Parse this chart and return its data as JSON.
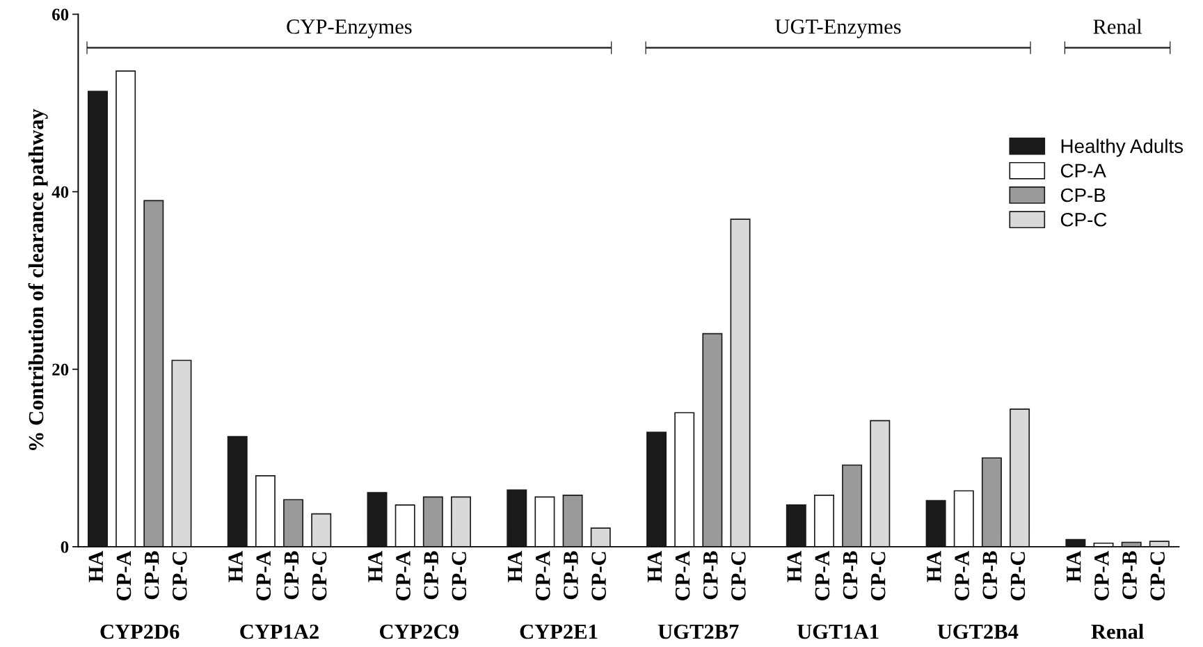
{
  "chart_data": {
    "type": "bar",
    "ylabel": "% Contribution of clearance pathway",
    "categories": [
      "HA",
      "CP-A",
      "CP-B",
      "CP-C",
      null,
      "HA",
      "CP-A",
      "CP-B",
      "CP-C",
      null,
      "HA",
      "CP-A",
      "CP-B",
      "CP-C",
      null,
      "HA",
      "CP-A",
      "CP-B",
      "CP-C",
      null,
      "HA",
      "CP-A",
      "CP-B",
      "CP-C",
      null,
      "HA",
      "CP-A",
      "CP-B",
      "CP-C",
      null,
      "HA",
      "CP-A",
      "CP-B",
      "CP-C",
      null,
      "HA",
      "CP-A",
      "CP-B",
      "CP-C"
    ],
    "series": [
      {
        "name": "Healthy Adults",
        "color": "#1a1a1a",
        "values": [
          51.3,
          null,
          null,
          null,
          null,
          12.4,
          null,
          null,
          null,
          null,
          6.1,
          null,
          null,
          null,
          null,
          6.4,
          null,
          null,
          null,
          null,
          12.9,
          null,
          null,
          null,
          null,
          4.7,
          null,
          null,
          null,
          null,
          5.2,
          null,
          null,
          null,
          null,
          0.8,
          null,
          null,
          null
        ]
      },
      {
        "name": "CP-A",
        "color": "#ffffff",
        "values": [
          null,
          53.6,
          null,
          null,
          null,
          null,
          8.0,
          null,
          null,
          null,
          null,
          4.7,
          null,
          null,
          null,
          null,
          5.6,
          null,
          null,
          null,
          null,
          15.1,
          null,
          null,
          null,
          null,
          5.8,
          null,
          null,
          null,
          null,
          6.3,
          null,
          null,
          null,
          null,
          0.4,
          null,
          null
        ]
      },
      {
        "name": "CP-B",
        "color": "#999a99",
        "values": [
          null,
          null,
          39.0,
          null,
          null,
          null,
          null,
          5.3,
          null,
          null,
          null,
          null,
          5.6,
          null,
          null,
          null,
          null,
          5.8,
          null,
          null,
          null,
          null,
          24.0,
          null,
          null,
          null,
          null,
          9.2,
          null,
          null,
          null,
          null,
          10.0,
          null,
          null,
          null,
          null,
          0.5,
          null
        ]
      },
      {
        "name": "CP-C",
        "color": "#d9d9d9",
        "values": [
          null,
          null,
          null,
          21.0,
          null,
          null,
          null,
          null,
          3.7,
          null,
          null,
          null,
          null,
          5.6,
          null,
          null,
          null,
          null,
          2.1,
          null,
          null,
          null,
          null,
          36.9,
          null,
          null,
          null,
          null,
          14.2,
          null,
          null,
          null,
          null,
          15.5,
          null,
          null,
          null,
          null,
          0.6
        ]
      }
    ],
    "ylim": [
      0,
      60
    ],
    "yticks": [
      0,
      20,
      40,
      60
    ],
    "grid": false,
    "legend": "top right",
    "annotations": [
      "CYP2D6",
      "CYP1A2",
      "CYP2C9",
      "CYP2E1",
      "UGT2B7",
      "UGT1A1",
      "UGT2B4",
      "Renal",
      "CYP-Enzymes",
      "UGT-Enzymes",
      "Renal"
    ]
  }
}
